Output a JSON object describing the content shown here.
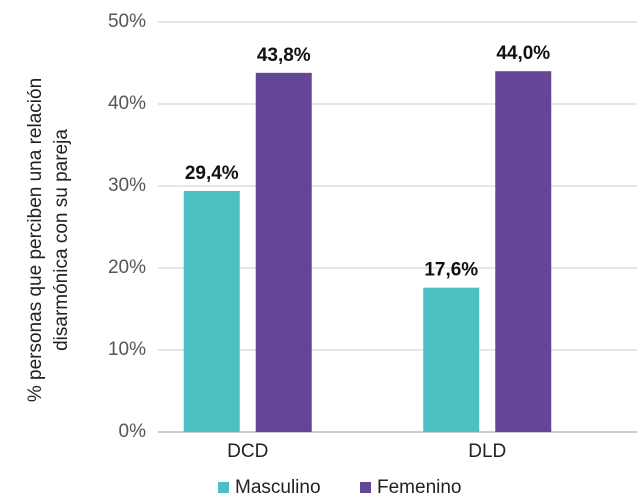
{
  "chart_data": {
    "type": "bar",
    "ylabel": [
      "% personas que perciben una relación",
      "disarmónica con su pareja"
    ],
    "categories": [
      "DCD",
      "DLD"
    ],
    "series": [
      {
        "name": "Masculino",
        "color": "#4cbfc3",
        "values": [
          29.4,
          17.6
        ],
        "value_labels": [
          "29,4%",
          "17,6%"
        ]
      },
      {
        "name": "Femenino",
        "color": "#634696",
        "values": [
          43.8,
          44.0
        ],
        "value_labels": [
          "43,8%",
          "44,0%"
        ]
      }
    ],
    "ylim": [
      0,
      50
    ],
    "yticks": [
      {
        "value": 0,
        "label": "0%"
      },
      {
        "value": 10,
        "label": "10%"
      },
      {
        "value": 20,
        "label": "20%"
      },
      {
        "value": 30,
        "label": "30%"
      },
      {
        "value": 40,
        "label": "40%"
      },
      {
        "value": 50,
        "label": "50%"
      }
    ],
    "grid": true,
    "legend": "bottom"
  }
}
